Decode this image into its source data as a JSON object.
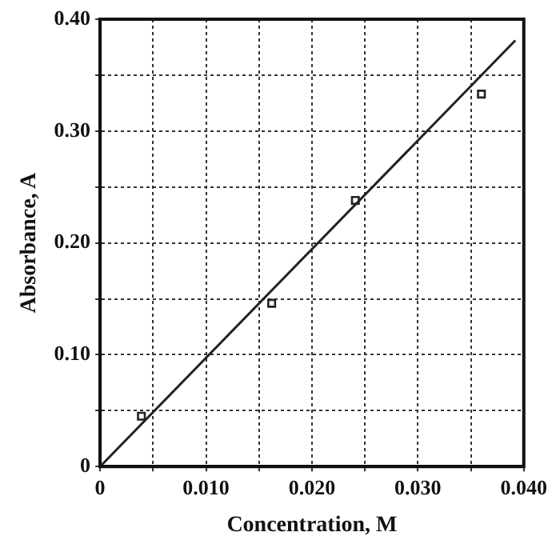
{
  "chart_data": {
    "type": "scatter",
    "xlabel": "Concentration, M",
    "ylabel": "Absorbance, A",
    "xlim": [
      0,
      0.04
    ],
    "ylim": [
      0,
      0.4
    ],
    "xticks": [
      0,
      {
        "value": 0.005,
        "label": null
      },
      {
        "value": 0.01,
        "label": "0.010"
      },
      {
        "value": 0.015,
        "label": null
      },
      {
        "value": 0.02,
        "label": "0.020"
      },
      {
        "value": 0.025,
        "label": null
      },
      {
        "value": 0.03,
        "label": "0.030"
      },
      {
        "value": 0.035,
        "label": null
      },
      {
        "value": 0.04,
        "label": "0.040"
      }
    ],
    "yticks": [
      0,
      {
        "value": 0.05,
        "label": null
      },
      {
        "value": 0.1,
        "label": "0.10"
      },
      {
        "value": 0.15,
        "label": null
      },
      {
        "value": 0.2,
        "label": "0.20"
      },
      {
        "value": 0.25,
        "label": null
      },
      {
        "value": 0.3,
        "label": "0.30"
      },
      {
        "value": 0.35,
        "label": null
      },
      {
        "value": 0.4,
        "label": "0.40"
      }
    ],
    "grid": true,
    "legend": false,
    "series": [
      {
        "type": "scatter",
        "color": "#222222",
        "marker": "square",
        "x": [
          0.0039,
          0.0162,
          0.0241,
          0.036
        ],
        "values": [
          0.045,
          0.146,
          0.238,
          0.333
        ]
      },
      {
        "type": "line",
        "color": "#222222",
        "marker": "none",
        "line_style": "solid",
        "x": [
          0,
          0.0392
        ],
        "values": [
          0,
          0.381
        ]
      }
    ]
  }
}
